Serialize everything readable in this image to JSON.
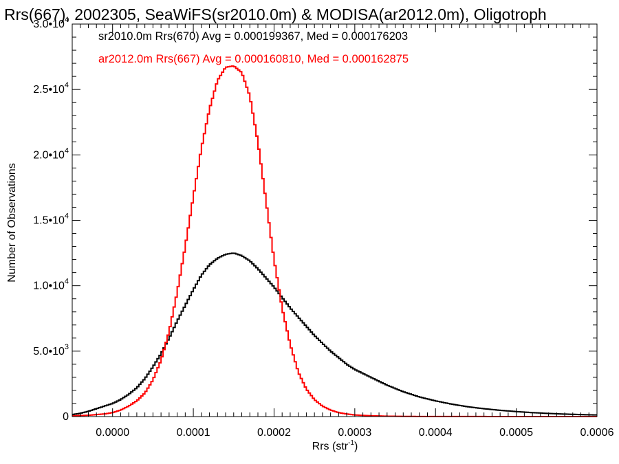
{
  "chart_data": {
    "type": "line",
    "title": "Rrs(667), 2002305, SeaWiFS(sr2010.0m) & MODISA(ar2012.0m), Oligotroph",
    "xlabel": "Rrs (str",
    "xlabel_sup": "-1",
    "xlabel_end": ")",
    "ylabel": "Number of Observations",
    "xlim": [
      -5e-05,
      0.0006
    ],
    "ylim": [
      0,
      30000
    ],
    "x_ticks": [
      0.0,
      0.0001,
      0.0002,
      0.0003,
      0.0004,
      0.0005,
      0.0006
    ],
    "x_tick_labels": [
      "0.0000",
      "0.0001",
      "0.0002",
      "0.0003",
      "0.0004",
      "0.0005",
      "0.0006"
    ],
    "y_ticks": [
      0,
      5000,
      10000,
      15000,
      20000,
      25000,
      30000
    ],
    "y_tick_labels": [
      {
        "base": "0",
        "exp": ""
      },
      {
        "base": "5.0•10",
        "exp": "3"
      },
      {
        "base": "1.0•10",
        "exp": "4"
      },
      {
        "base": "1.5•10",
        "exp": "4"
      },
      {
        "base": "2.0•10",
        "exp": "4"
      },
      {
        "base": "2.5•10",
        "exp": "4"
      },
      {
        "base": "3.0•10",
        "exp": "4"
      }
    ],
    "grid": false,
    "legend_position": "top-left",
    "series": [
      {
        "name": "sr2010.0m Rrs(670)",
        "legend": "sr2010.0m Rrs(670) Avg = 0.000199367, Med = 0.000176203",
        "avg": 0.000199367,
        "median": 0.000176203,
        "color": "#000000",
        "x": [
          -5e-05,
          -4e-05,
          -3e-05,
          -2e-05,
          -1e-05,
          0.0,
          1e-05,
          2e-05,
          3e-05,
          4e-05,
          5e-05,
          6e-05,
          7e-05,
          8e-05,
          9e-05,
          0.0001,
          0.00011,
          0.00012,
          0.00013,
          0.00014,
          0.00015,
          0.00016,
          0.00017,
          0.00018,
          0.00019,
          0.0002,
          0.00021,
          0.00022,
          0.00023,
          0.00024,
          0.00025,
          0.00026,
          0.00027,
          0.00028,
          0.00029,
          0.0003,
          0.00031,
          0.00032,
          0.00033,
          0.00034,
          0.00035,
          0.00036,
          0.00037,
          0.00038,
          0.00039,
          0.0004,
          0.00042,
          0.00044,
          0.00046,
          0.00048,
          0.0005,
          0.00052,
          0.00054,
          0.00056,
          0.00058,
          0.0006
        ],
        "values": [
          150,
          250,
          400,
          600,
          800,
          1000,
          1300,
          1700,
          2200,
          2900,
          3800,
          4800,
          6000,
          7300,
          8500,
          9700,
          10800,
          11600,
          12100,
          12400,
          12500,
          12300,
          11900,
          11300,
          10600,
          9900,
          9100,
          8300,
          7600,
          6900,
          6200,
          5600,
          5000,
          4500,
          4000,
          3600,
          3300,
          3000,
          2700,
          2400,
          2150,
          1900,
          1700,
          1500,
          1350,
          1200,
          950,
          750,
          600,
          480,
          380,
          300,
          240,
          190,
          150,
          120
        ]
      },
      {
        "name": "ar2012.0m Rrs(667)",
        "legend": "ar2012.0m Rrs(667) Avg = 0.000160810, Med = 0.000162875",
        "avg": 0.00016081,
        "median": 0.000162875,
        "color": "#ff0000",
        "x": [
          -5e-05,
          -4e-05,
          -3e-05,
          -2e-05,
          -1e-05,
          0.0,
          1e-05,
          2e-05,
          3e-05,
          4e-05,
          5e-05,
          6e-05,
          7e-05,
          8e-05,
          9e-05,
          0.0001,
          0.00011,
          0.00012,
          0.00013,
          0.00014,
          0.00015,
          0.00016,
          0.00017,
          0.00018,
          0.00019,
          0.0002,
          0.00021,
          0.00022,
          0.00023,
          0.00024,
          0.00025,
          0.00026,
          0.00027,
          0.00028,
          0.00029,
          0.0003,
          0.00032,
          0.00034,
          0.00036,
          0.00038,
          0.0004,
          0.0006
        ],
        "values": [
          50,
          80,
          100,
          150,
          200,
          300,
          500,
          800,
          1200,
          1800,
          2800,
          4300,
          6500,
          9500,
          13000,
          16800,
          20500,
          23500,
          25700,
          26700,
          26800,
          26300,
          24500,
          21000,
          16500,
          12000,
          8300,
          5500,
          3400,
          2100,
          1300,
          800,
          500,
          300,
          200,
          120,
          60,
          30,
          15,
          8,
          5,
          0
        ]
      }
    ]
  }
}
